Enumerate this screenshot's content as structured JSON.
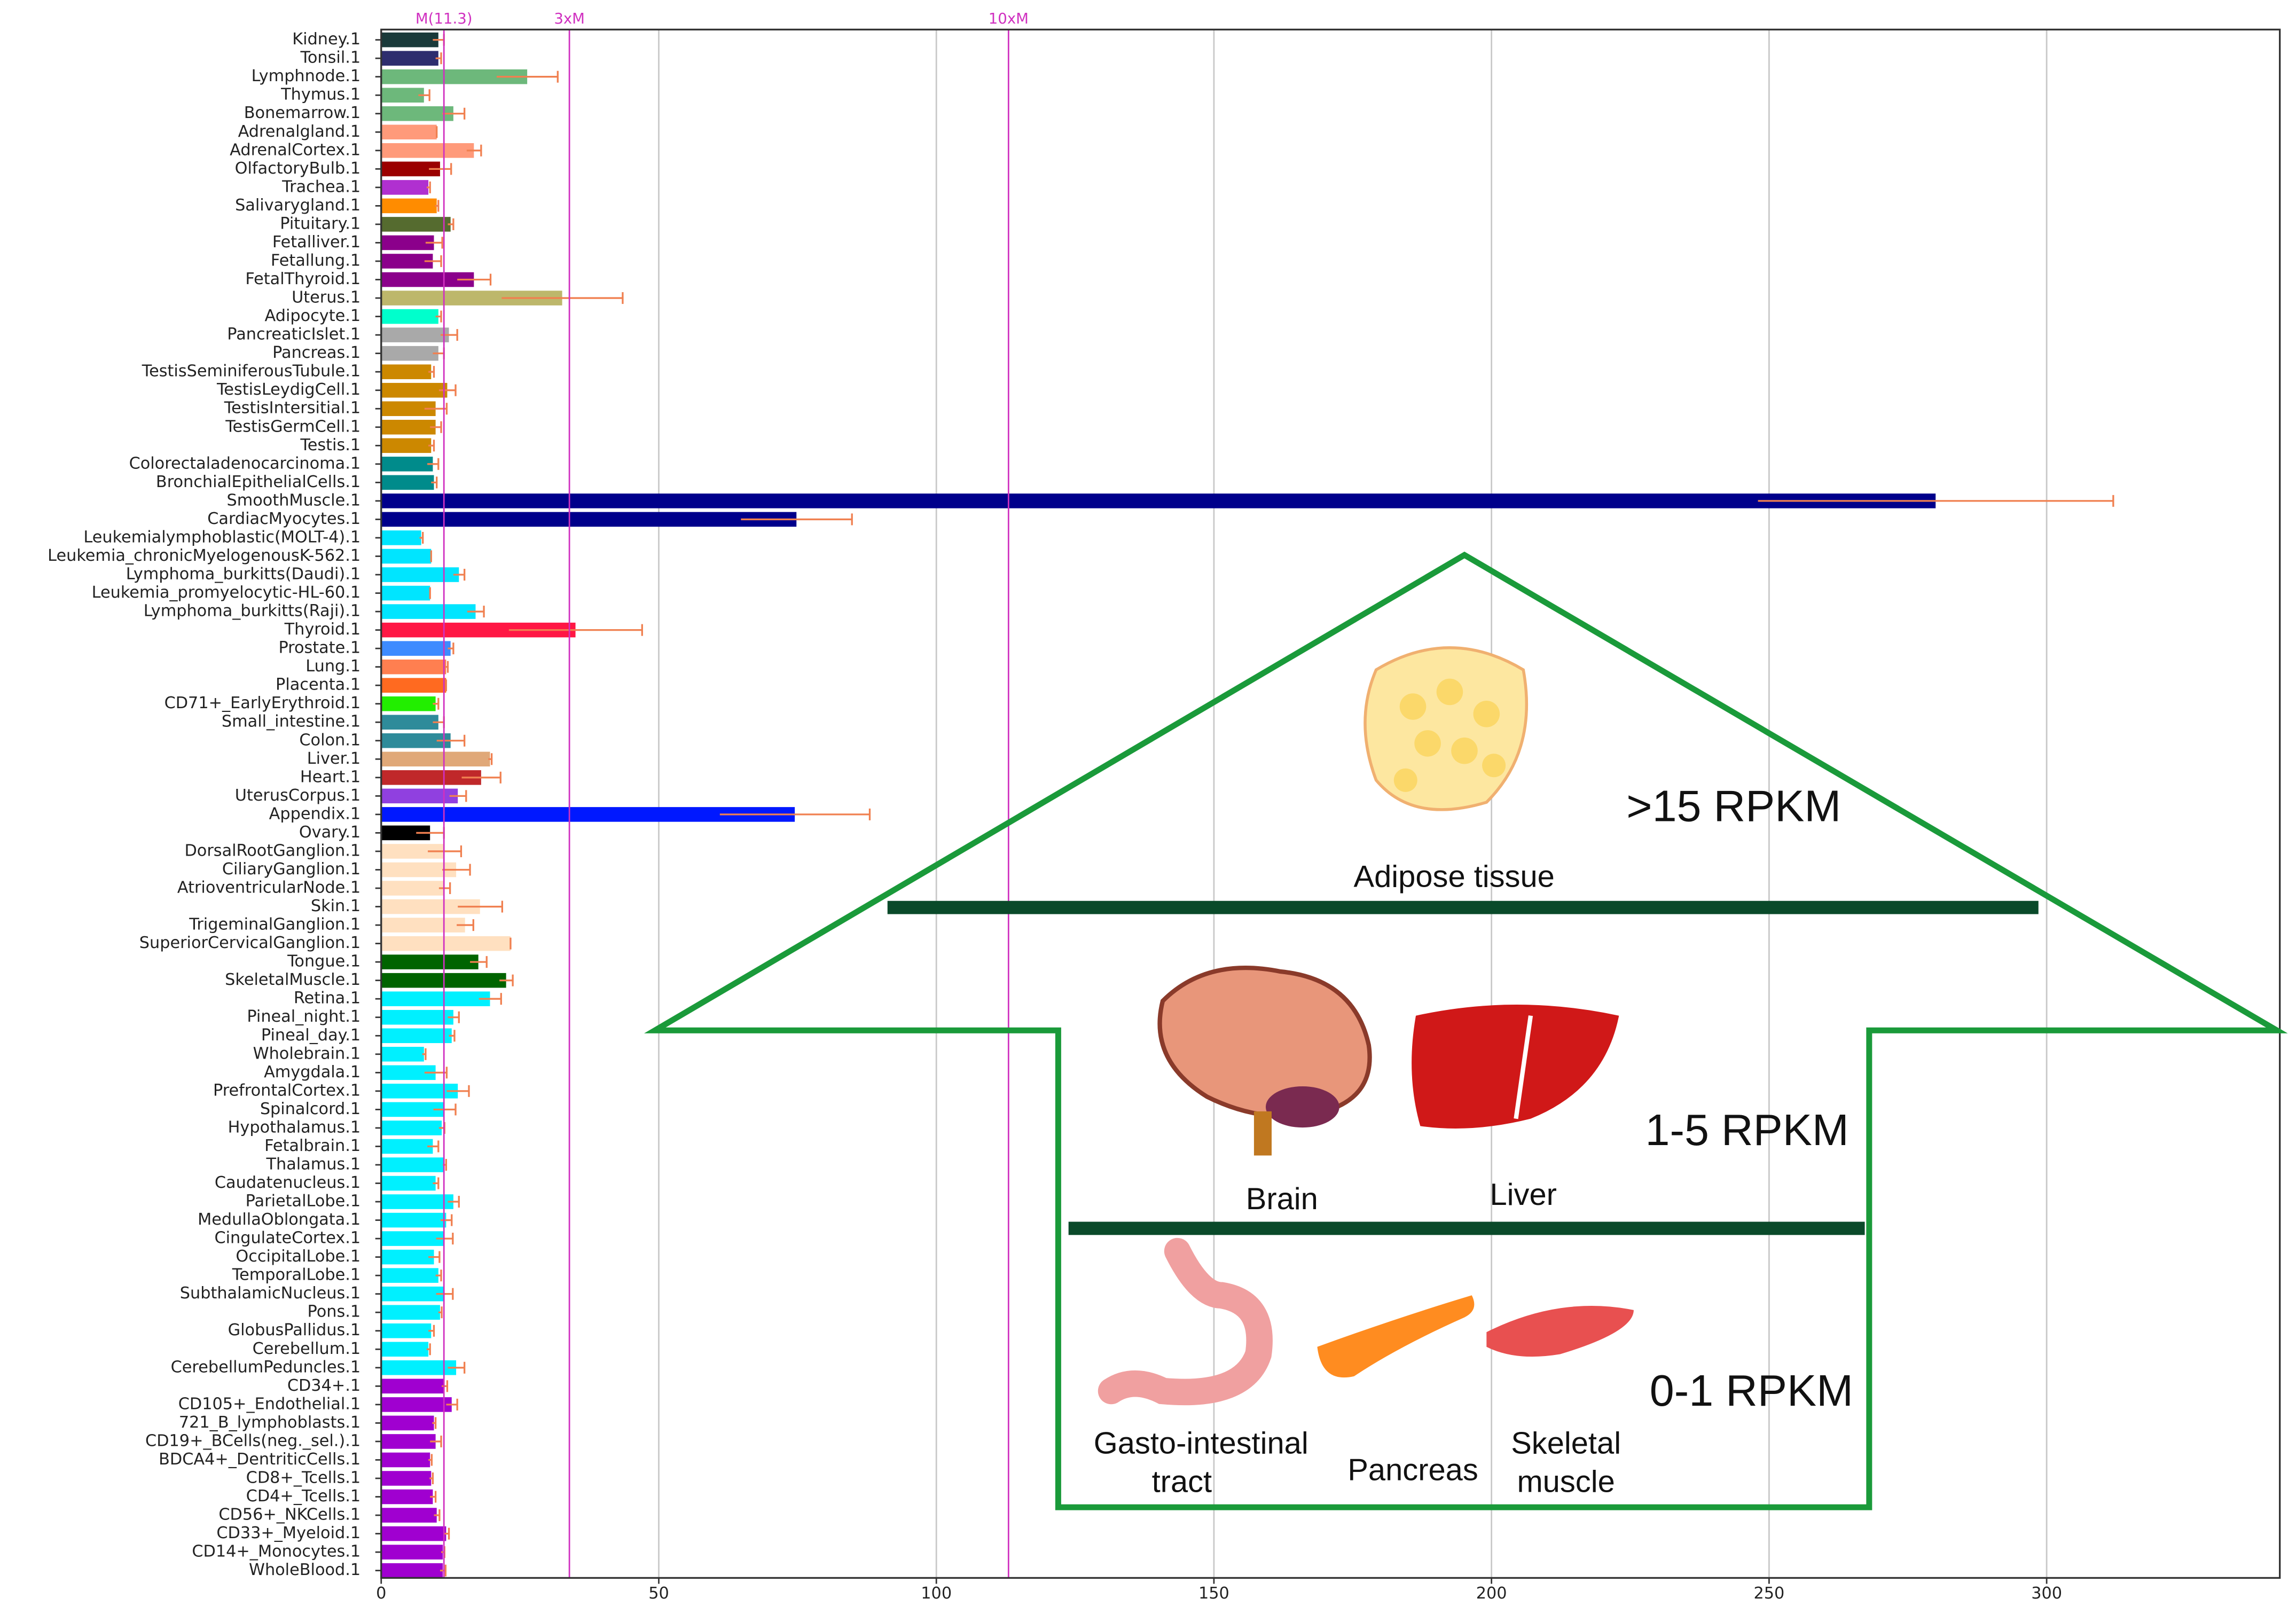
{
  "chart_data": {
    "type": "bar",
    "orientation": "horizontal",
    "categories": [
      "Kidney.1",
      "Tonsil.1",
      "Lymphnode.1",
      "Thymus.1",
      "Bonemarrow.1",
      "Adrenalgland.1",
      "AdrenalCortex.1",
      "OlfactoryBulb.1",
      "Trachea.1",
      "Salivarygland.1",
      "Pituitary.1",
      "Fetalliver.1",
      "Fetallung.1",
      "FetalThyroid.1",
      "Uterus.1",
      "Adipocyte.1",
      "PancreaticIslet.1",
      "Pancreas.1",
      "TestisSeminiferousTubule.1",
      "TestisLeydigCell.1",
      "TestisIntersitial.1",
      "TestisGermCell.1",
      "Testis.1",
      "Colorectaladenocarcinoma.1",
      "BronchialEpithelialCells.1",
      "SmoothMuscle.1",
      "CardiacMyocytes.1",
      "Leukemialymphoblastic(MOLT-4).1",
      "Leukemia_chronicMyelogenousK-562.1",
      "Lymphoma_burkitts(Daudi).1",
      "Leukemia_promyelocytic-HL-60.1",
      "Lymphoma_burkitts(Raji).1",
      "Thyroid.1",
      "Prostate.1",
      "Lung.1",
      "Placenta.1",
      "CD71+_EarlyErythroid.1",
      "Small_intestine.1",
      "Colon.1",
      "Liver.1",
      "Heart.1",
      "UterusCorpus.1",
      "Appendix.1",
      "Ovary.1",
      "DorsalRootGanglion.1",
      "CiliaryGanglion.1",
      "AtrioventricularNode.1",
      "Skin.1",
      "TrigeminalGanglion.1",
      "SuperiorCervicalGanglion.1",
      "Tongue.1",
      "SkeletalMuscle.1",
      "Retina.1",
      "Pineal_night.1",
      "Pineal_day.1",
      "Wholebrain.1",
      "Amygdala.1",
      "PrefrontalCortex.1",
      "Spinalcord.1",
      "Hypothalamus.1",
      "Fetalbrain.1",
      "Thalamus.1",
      "Caudatenucleus.1",
      "ParietalLobe.1",
      "MedullaOblongata.1",
      "CingulateCortex.1",
      "OccipitalLobe.1",
      "TemporalLobe.1",
      "SubthalamicNucleus.1",
      "Pons.1",
      "GlobusPallidus.1",
      "Cerebellum.1",
      "CerebellumPeduncles.1",
      "CD34+.1",
      "CD105+_Endothelial.1",
      "721_B_lymphoblasts.1",
      "CD19+_BCells(neg._sel.).1",
      "BDCA4+_DentriticCells.1",
      "CD8+_Tcells.1",
      "CD4+_Tcells.1",
      "CD56+_NKCells.1",
      "CD33+_Myeloid.1",
      "CD14+_Monocytes.1",
      "WholeBlood.1"
    ],
    "series": [
      {
        "values": [
          10.3,
          10.3,
          26.3,
          7.7,
          13,
          10,
          16.7,
          10.6,
          8.5,
          10,
          12.5,
          9.5,
          9.3,
          16.7,
          32.6,
          10.3,
          12.2,
          10.3,
          9,
          11.9,
          9.8,
          9.8,
          9,
          9.3,
          9.5,
          280,
          74.8,
          7.2,
          9,
          14,
          8.8,
          17,
          35,
          12.5,
          11.7,
          11.7,
          9.8,
          10.3,
          12.5,
          19.6,
          18,
          13.8,
          74.5,
          8.8,
          11.4,
          13.5,
          11.4,
          17.8,
          15.1,
          23.3,
          17.5,
          22.5,
          19.6,
          13,
          12.7,
          7.7,
          9.8,
          13.8,
          11.4,
          10.9,
          9.3,
          11.4,
          9.8,
          13,
          11.7,
          11.4,
          9.5,
          10.3,
          11.4,
          10.6,
          9,
          8.5,
          13.5,
          11.4,
          12.7,
          9.5,
          9.8,
          8.8,
          9,
          9.3,
          10,
          11.7,
          11.1,
          11.1
        ],
        "errors": [
          1,
          0.5,
          5.5,
          1,
          2,
          0,
          1.3,
          2,
          0.3,
          0.3,
          0.5,
          1.5,
          1.5,
          3,
          10.9,
          0.5,
          1.5,
          1,
          0.5,
          1.5,
          2,
          1,
          0.5,
          1,
          0.5,
          32,
          10,
          0.3,
          0,
          1,
          0,
          1.5,
          12,
          0.5,
          0.3,
          0,
          0.5,
          1,
          2.5,
          0.3,
          3.5,
          1.5,
          13.5,
          2.5,
          3,
          2.5,
          1,
          4,
          1.5,
          0,
          1.5,
          1.2,
          2,
          1,
          0.5,
          0.3,
          2,
          2,
          2,
          0.5,
          1,
          0.3,
          0.5,
          1,
          1,
          1.5,
          1,
          0.5,
          1.5,
          0.3,
          0.5,
          0.3,
          1.5,
          0.5,
          1,
          0.3,
          1,
          0.3,
          0.3,
          0.5,
          0.5,
          0.5,
          0.3,
          0.5
        ],
        "colors": [
          "#1a3a3a",
          "#2d2d6e",
          "#6db87b",
          "#6db87b",
          "#6db87b",
          "#ff9a7a",
          "#ff9a7a",
          "#9b0000",
          "#b030d0",
          "#ff8c00",
          "#556b2f",
          "#8b008b",
          "#8b008b",
          "#8b008b",
          "#bdb76b",
          "#00ffcc",
          "#a9a9a9",
          "#a9a9a9",
          "#cc8800",
          "#cc8800",
          "#cc8800",
          "#cc8800",
          "#cc8800",
          "#008b8b",
          "#008b8b",
          "#00008b",
          "#00008b",
          "#00e5ff",
          "#00e5ff",
          "#00e5ff",
          "#00e5ff",
          "#00e5ff",
          "#ff1744",
          "#3d8bff",
          "#ff7f50",
          "#ff6a20",
          "#22ee00",
          "#2e8b9a",
          "#2e8b9a",
          "#e0a878",
          "#c0282a",
          "#9040e0",
          "#0018ff",
          "#000000",
          "#ffe0c0",
          "#ffe0c0",
          "#ffe0c0",
          "#ffe0c0",
          "#ffe0c0",
          "#ffe0c0",
          "#006400",
          "#006400",
          "#00f0ff",
          "#00f0ff",
          "#00f0ff",
          "#00f0ff",
          "#00f0ff",
          "#00f0ff",
          "#00f0ff",
          "#00f0ff",
          "#00f0ff",
          "#00f0ff",
          "#00f0ff",
          "#00f0ff",
          "#00f0ff",
          "#00f0ff",
          "#00f0ff",
          "#00f0ff",
          "#00f0ff",
          "#00f0ff",
          "#00f0ff",
          "#00f0ff",
          "#00f0ff",
          "#a000d0",
          "#a000d0",
          "#a000d0",
          "#a000d0",
          "#a000d0",
          "#a000d0",
          "#a000d0",
          "#a000d0",
          "#a000d0",
          "#a000d0",
          "#a000d0"
        ]
      }
    ],
    "error_color": "#f08050",
    "xlim": [
      0,
      342
    ],
    "xticks": [
      0,
      50,
      100,
      150,
      200,
      250,
      300
    ],
    "grid": true,
    "ref_color": "#d030c0",
    "ref_lines": [
      {
        "value": 11.3,
        "label": "M(11.3)"
      },
      {
        "value": 33.9,
        "label": "3xM"
      },
      {
        "value": 113,
        "label": "10xM"
      }
    ],
    "annotations": [
      ">15 RPKM",
      "Adipose tissue",
      "1-5 RPKM",
      "Brain",
      "Liver",
      "0-1 RPKM",
      "Gasto-intestinal",
      "tract",
      "Pancreas",
      "Skeletal",
      "muscle"
    ]
  }
}
